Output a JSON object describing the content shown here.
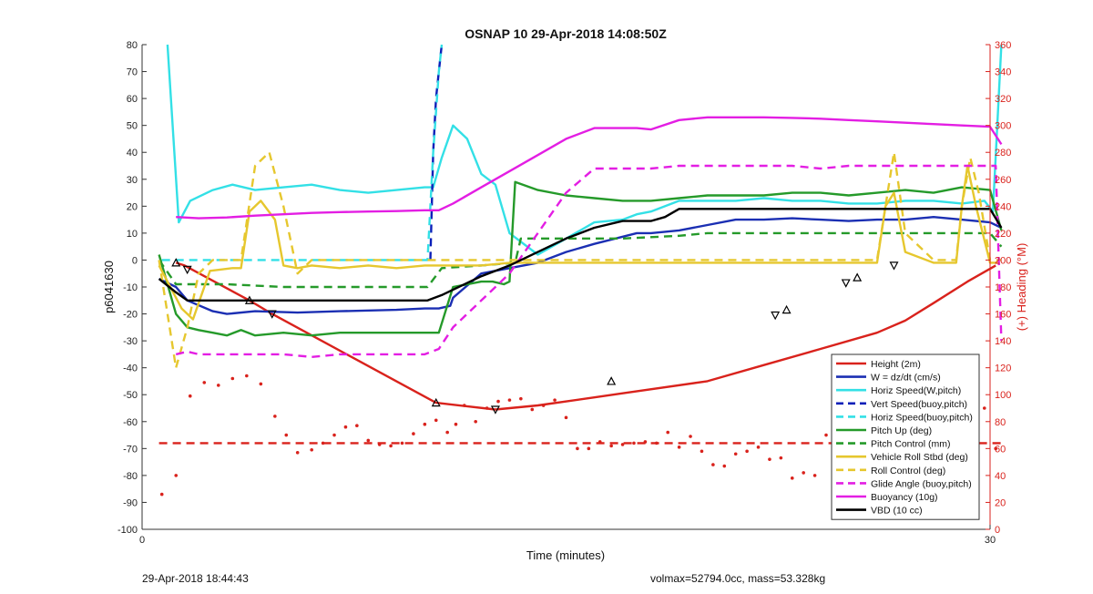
{
  "chart_data": {
    "type": "line",
    "title": "OSNAP 10 29-Apr-2018 14:08:50Z",
    "xlabel": "Time (minutes)",
    "ylabel_left": "p6041630",
    "ylabel_right": "(+) Heading (°M)",
    "xlim": [
      0,
      30
    ],
    "ylim_left": [
      -100,
      80
    ],
    "ylim_right": [
      0,
      360
    ],
    "xticks": [
      "0",
      "30"
    ],
    "yticks_left": [
      "80",
      "70",
      "60",
      "50",
      "40",
      "30",
      "20",
      "10",
      "0",
      "-10",
      "-20",
      "-30",
      "-40",
      "-50",
      "-60",
      "-70",
      "-80",
      "-90",
      "-100"
    ],
    "yticks_right": [
      "360",
      "340",
      "320",
      "300",
      "280",
      "260",
      "240",
      "220",
      "200",
      "180",
      "160",
      "140",
      "120",
      "100",
      "80",
      "60",
      "40",
      "20",
      "0"
    ],
    "legend_position": "bottom-right",
    "colors": {
      "red": "#d9221c",
      "blue": "#1b2fb3",
      "cyan": "#33e0e6",
      "darkblue": "#0a1fb8",
      "green": "#259a2a",
      "yellow": "#e6c72e",
      "magenta": "#e31ee3",
      "black": "#000000",
      "right_axis": "#d9221c"
    },
    "series": [
      {
        "name": "Height (2m)",
        "color": "#d9221c",
        "dash": "solid",
        "axis": "left",
        "x": [
          1.2,
          1.5,
          3.8,
          4.6,
          10.4,
          12.5,
          14,
          16,
          17,
          20,
          22,
          24,
          26,
          27,
          28,
          29.2,
          30.2
        ],
        "y": [
          -1,
          -2,
          -15,
          -20,
          -53,
          -55.5,
          -54,
          -51,
          -49.5,
          -45,
          -39,
          -33,
          -27,
          -22.5,
          -16,
          -8,
          -2
        ]
      },
      {
        "name": "W = dz/dt (cm/s)",
        "color": "#1b2fb3",
        "dash": "solid",
        "axis": "left",
        "x": [
          0.6,
          1.2,
          1.6,
          2.5,
          3,
          4,
          5.5,
          7,
          9,
          10,
          10.5,
          10.9,
          11,
          12,
          13,
          14,
          15,
          16,
          17.5,
          18,
          19,
          20,
          21,
          22,
          23,
          24,
          25,
          26,
          27,
          28,
          29,
          30,
          30.4
        ],
        "y": [
          -7,
          -10,
          -15,
          -19,
          -20,
          -19,
          -19.5,
          -19,
          -18.5,
          -18,
          -18,
          -17,
          -14,
          -5,
          -3,
          -1,
          3,
          6,
          10,
          10,
          11,
          13,
          15,
          15,
          15.5,
          15,
          14.5,
          15,
          15,
          16,
          15,
          14,
          12
        ]
      },
      {
        "name": "Horiz Speed(W,pitch)",
        "color": "#33e0e6",
        "dash": "solid",
        "axis": "left",
        "x": [
          0.9,
          1.3,
          1.7,
          2.5,
          3.2,
          4,
          5,
          6,
          7,
          8,
          9,
          10,
          10.3,
          10.6,
          11,
          11.5,
          12,
          12.5,
          13,
          14,
          15,
          16,
          17,
          17.5,
          18,
          19,
          20,
          21,
          22,
          23,
          24,
          25,
          26,
          27,
          28,
          29,
          29.8,
          30.1,
          30.4
        ],
        "y": [
          80,
          14,
          22,
          26,
          28,
          26,
          27,
          28,
          26,
          25,
          26,
          27,
          27,
          38,
          50,
          45,
          32,
          28,
          10,
          2,
          8,
          14,
          15,
          17,
          18,
          22,
          22,
          22,
          23,
          22,
          22,
          21,
          21,
          22,
          22,
          21,
          22,
          18,
          80
        ]
      },
      {
        "name": "Vert Speed(buoy,pitch)",
        "color": "#0a1fb8",
        "dash": "dashed",
        "axis": "left",
        "x": [
          10.2,
          10.3,
          10.4,
          10.5,
          10.6,
          10.7
        ],
        "y": [
          0,
          40,
          60,
          70,
          80,
          80
        ]
      },
      {
        "name": "Horiz Speed(buoy,pitch)",
        "color": "#33e0e6",
        "dash": "dashed",
        "axis": "left",
        "x": [
          0.7,
          1.2,
          3,
          5,
          7,
          9,
          10.1,
          10.3,
          10.5,
          10.6
        ],
        "y": [
          0,
          0,
          0,
          0,
          0,
          0,
          0,
          40,
          70,
          80
        ]
      },
      {
        "name": "Pitch Up (deg)",
        "color": "#259a2a",
        "dash": "solid",
        "axis": "left",
        "x": [
          0.6,
          1.2,
          1.6,
          2,
          2.5,
          3,
          3.5,
          4,
          5,
          6,
          7,
          8,
          9,
          10,
          10.5,
          11,
          12,
          12.4,
          12.8,
          13,
          13.2,
          14,
          15,
          16,
          17,
          18,
          19,
          20,
          21,
          22,
          23,
          24,
          25,
          26,
          27,
          28,
          29,
          30,
          30.4
        ],
        "y": [
          2,
          -20,
          -25,
          -26,
          -27,
          -28,
          -26,
          -28,
          -27,
          -28,
          -27,
          -27,
          -27,
          -27,
          -27,
          -10,
          -8,
          -8,
          -9,
          -8,
          29,
          26,
          24,
          23,
          22,
          22,
          23,
          24,
          24,
          24,
          25,
          25,
          24,
          25,
          26,
          25,
          27,
          26,
          11
        ]
      },
      {
        "name": "Pitch Control (mm)",
        "color": "#259a2a",
        "dash": "dashed",
        "axis": "left",
        "x": [
          0.6,
          1.2,
          3,
          5,
          7,
          9,
          10.1,
          10.6,
          12,
          13.2,
          13.4,
          15,
          17,
          19,
          20,
          22,
          24,
          26,
          28,
          30,
          30.4
        ],
        "y": [
          0,
          -9,
          -9,
          -10,
          -10,
          -10,
          -10,
          -3,
          -2,
          -1,
          8,
          8,
          8,
          9,
          10,
          10,
          10,
          10,
          10,
          10,
          5
        ]
      },
      {
        "name": "Vehicle Roll Stbd (deg)",
        "color": "#e6c72e",
        "dash": "solid",
        "axis": "left",
        "x": [
          0.6,
          1.4,
          1.8,
          2,
          2.4,
          3.2,
          3.5,
          3.8,
          4.2,
          4.7,
          5,
          5.5,
          6,
          7,
          8,
          9,
          10,
          10.5,
          11,
          12,
          13,
          14,
          15,
          16,
          17,
          18,
          19,
          20,
          21,
          22,
          23,
          24,
          25,
          26,
          26.3,
          26.6,
          27,
          28,
          28.8,
          29,
          29.2,
          29.5,
          30,
          30.3
        ],
        "y": [
          -2,
          -18,
          -22,
          -16,
          -4,
          -3,
          -3,
          18,
          22,
          15,
          -2,
          -3,
          -2,
          -3,
          -2,
          -3,
          -2,
          -2,
          -2,
          -2,
          -1,
          -1,
          -1,
          -1,
          -1,
          -1,
          -1,
          -1,
          -1,
          -1,
          -1,
          -1,
          -1,
          -1,
          20,
          25,
          3,
          -1,
          -1,
          20,
          35,
          20,
          -1,
          -1
        ]
      },
      {
        "name": "Roll Control (deg)",
        "color": "#e6c72e",
        "dash": "dashed",
        "axis": "left",
        "x": [
          0.6,
          1.2,
          1.6,
          2,
          2.5,
          3.5,
          4,
          4.5,
          5,
          5.5,
          6,
          8,
          10,
          12,
          14,
          16,
          18,
          20,
          22,
          24,
          26,
          26.3,
          26.6,
          27,
          28,
          28.8,
          29,
          29.3,
          29.6,
          30,
          30.4
        ],
        "y": [
          0,
          -40,
          -25,
          -5,
          0,
          0,
          35,
          40,
          20,
          -5,
          0,
          0,
          0,
          0,
          0,
          0,
          0,
          0,
          0,
          0,
          0,
          20,
          40,
          10,
          0,
          0,
          20,
          38,
          25,
          0,
          0
        ]
      },
      {
        "name": "Glide Angle (buoy,pitch)",
        "color": "#e31ee3",
        "dash": "dashed",
        "axis": "left",
        "x": [
          1.2,
          1.6,
          2,
          3,
          4,
          5,
          6,
          7,
          8,
          9,
          10,
          10.5,
          11,
          12,
          13,
          14,
          15,
          16,
          17,
          17.5,
          18,
          19,
          20,
          21,
          22,
          23,
          24,
          25,
          26,
          27,
          28,
          29,
          30,
          30.2,
          30.4
        ],
        "y": [
          -35,
          -34,
          -35,
          -35,
          -35,
          -35,
          -36,
          -35,
          -35,
          -35,
          -35,
          -33,
          -25,
          -15,
          -5,
          10,
          25,
          34,
          34,
          34,
          34,
          35,
          35,
          35,
          35,
          35,
          34,
          35,
          35,
          35,
          35,
          35,
          35,
          35,
          -30
        ]
      },
      {
        "name": "Buoyancy (10g)",
        "color": "#e31ee3",
        "dash": "solid",
        "axis": "left",
        "x": [
          1.2,
          2,
          3,
          4,
          5,
          6,
          7,
          8,
          9,
          10,
          10.5,
          11,
          12,
          13,
          14,
          15,
          16,
          17,
          17.5,
          18,
          19,
          20,
          21,
          22,
          23,
          24,
          25,
          26,
          27,
          28,
          29,
          30,
          30.4
        ],
        "y": [
          16,
          15.5,
          15.8,
          16.5,
          17,
          17.5,
          17.8,
          18,
          18.2,
          18.5,
          18.5,
          21,
          27,
          33,
          39,
          45,
          49,
          49,
          49,
          48.5,
          52,
          53,
          53,
          53,
          52.8,
          52.5,
          52,
          51.5,
          51,
          50.5,
          50,
          49.5,
          43
        ]
      },
      {
        "name": "VBD (10 cc)",
        "color": "#000000",
        "dash": "solid",
        "axis": "left",
        "x": [
          0.6,
          1.2,
          1.6,
          3,
          5,
          7,
          9,
          10.1,
          10.6,
          12,
          13,
          14,
          15,
          16,
          17,
          17.5,
          18,
          18.5,
          19,
          20,
          22,
          24,
          26,
          28,
          30,
          30.4
        ],
        "y": [
          -7,
          -12,
          -15,
          -15,
          -15,
          -15,
          -15,
          -15,
          -13,
          -6,
          -2,
          3,
          8,
          12,
          14.5,
          14.5,
          14.5,
          16,
          19,
          19,
          19,
          19,
          19,
          19,
          19,
          12
        ]
      },
      {
        "name": "",
        "color": "#d9221c",
        "dash": "dashed",
        "axis": "right",
        "x": [
          0.6,
          30.4
        ],
        "y": [
          64,
          64
        ]
      },
      {
        "name": "",
        "color": "#d9221c",
        "dash": "dots",
        "axis": "right",
        "x": [
          0.7,
          1.2,
          1.7,
          2.2,
          2.7,
          3.2,
          3.7,
          4.2,
          4.7,
          5.1,
          5.5,
          6.0,
          6.4,
          6.8,
          7.2,
          7.6,
          8.0,
          8.4,
          8.8,
          9.2,
          9.6,
          10.0,
          10.4,
          10.8,
          11.1,
          11.4,
          11.8,
          12.2,
          12.6,
          13.0,
          13.4,
          13.8,
          14.2,
          14.6,
          15.0,
          15.4,
          15.8,
          16.2,
          16.6,
          17.0,
          17.4,
          17.8,
          18.2,
          18.6,
          19.0,
          19.4,
          19.8,
          20.2,
          20.6,
          21.0,
          21.4,
          21.8,
          22.2,
          22.6,
          23.0,
          23.4,
          23.8,
          24.2,
          24.6,
          25.0,
          25.4,
          25.8,
          26.2,
          26.6,
          27.0,
          27.4,
          27.8,
          28.2,
          28.6,
          29.0,
          29.4,
          29.8,
          30.2
        ],
        "y": [
          26,
          40,
          99,
          109,
          107,
          112,
          114,
          108,
          84,
          70,
          57,
          59,
          64,
          70,
          76,
          77,
          66,
          63,
          62,
          64,
          71,
          78,
          81,
          72,
          78,
          92,
          80,
          90,
          95,
          96,
          97,
          89,
          92,
          96,
          83,
          60,
          60,
          65,
          62,
          63,
          64,
          65,
          64,
          72,
          61,
          69,
          58,
          48,
          47,
          56,
          58,
          61,
          52,
          53,
          38,
          42,
          40,
          70,
          75,
          77,
          68,
          58,
          50,
          44,
          40,
          33,
          50,
          60,
          65,
          70,
          80,
          90,
          60
        ]
      }
    ]
  },
  "footer": {
    "left": "29-Apr-2018 18:44:43",
    "right": "volmax=52794.0cc, mass=53.328kg"
  }
}
